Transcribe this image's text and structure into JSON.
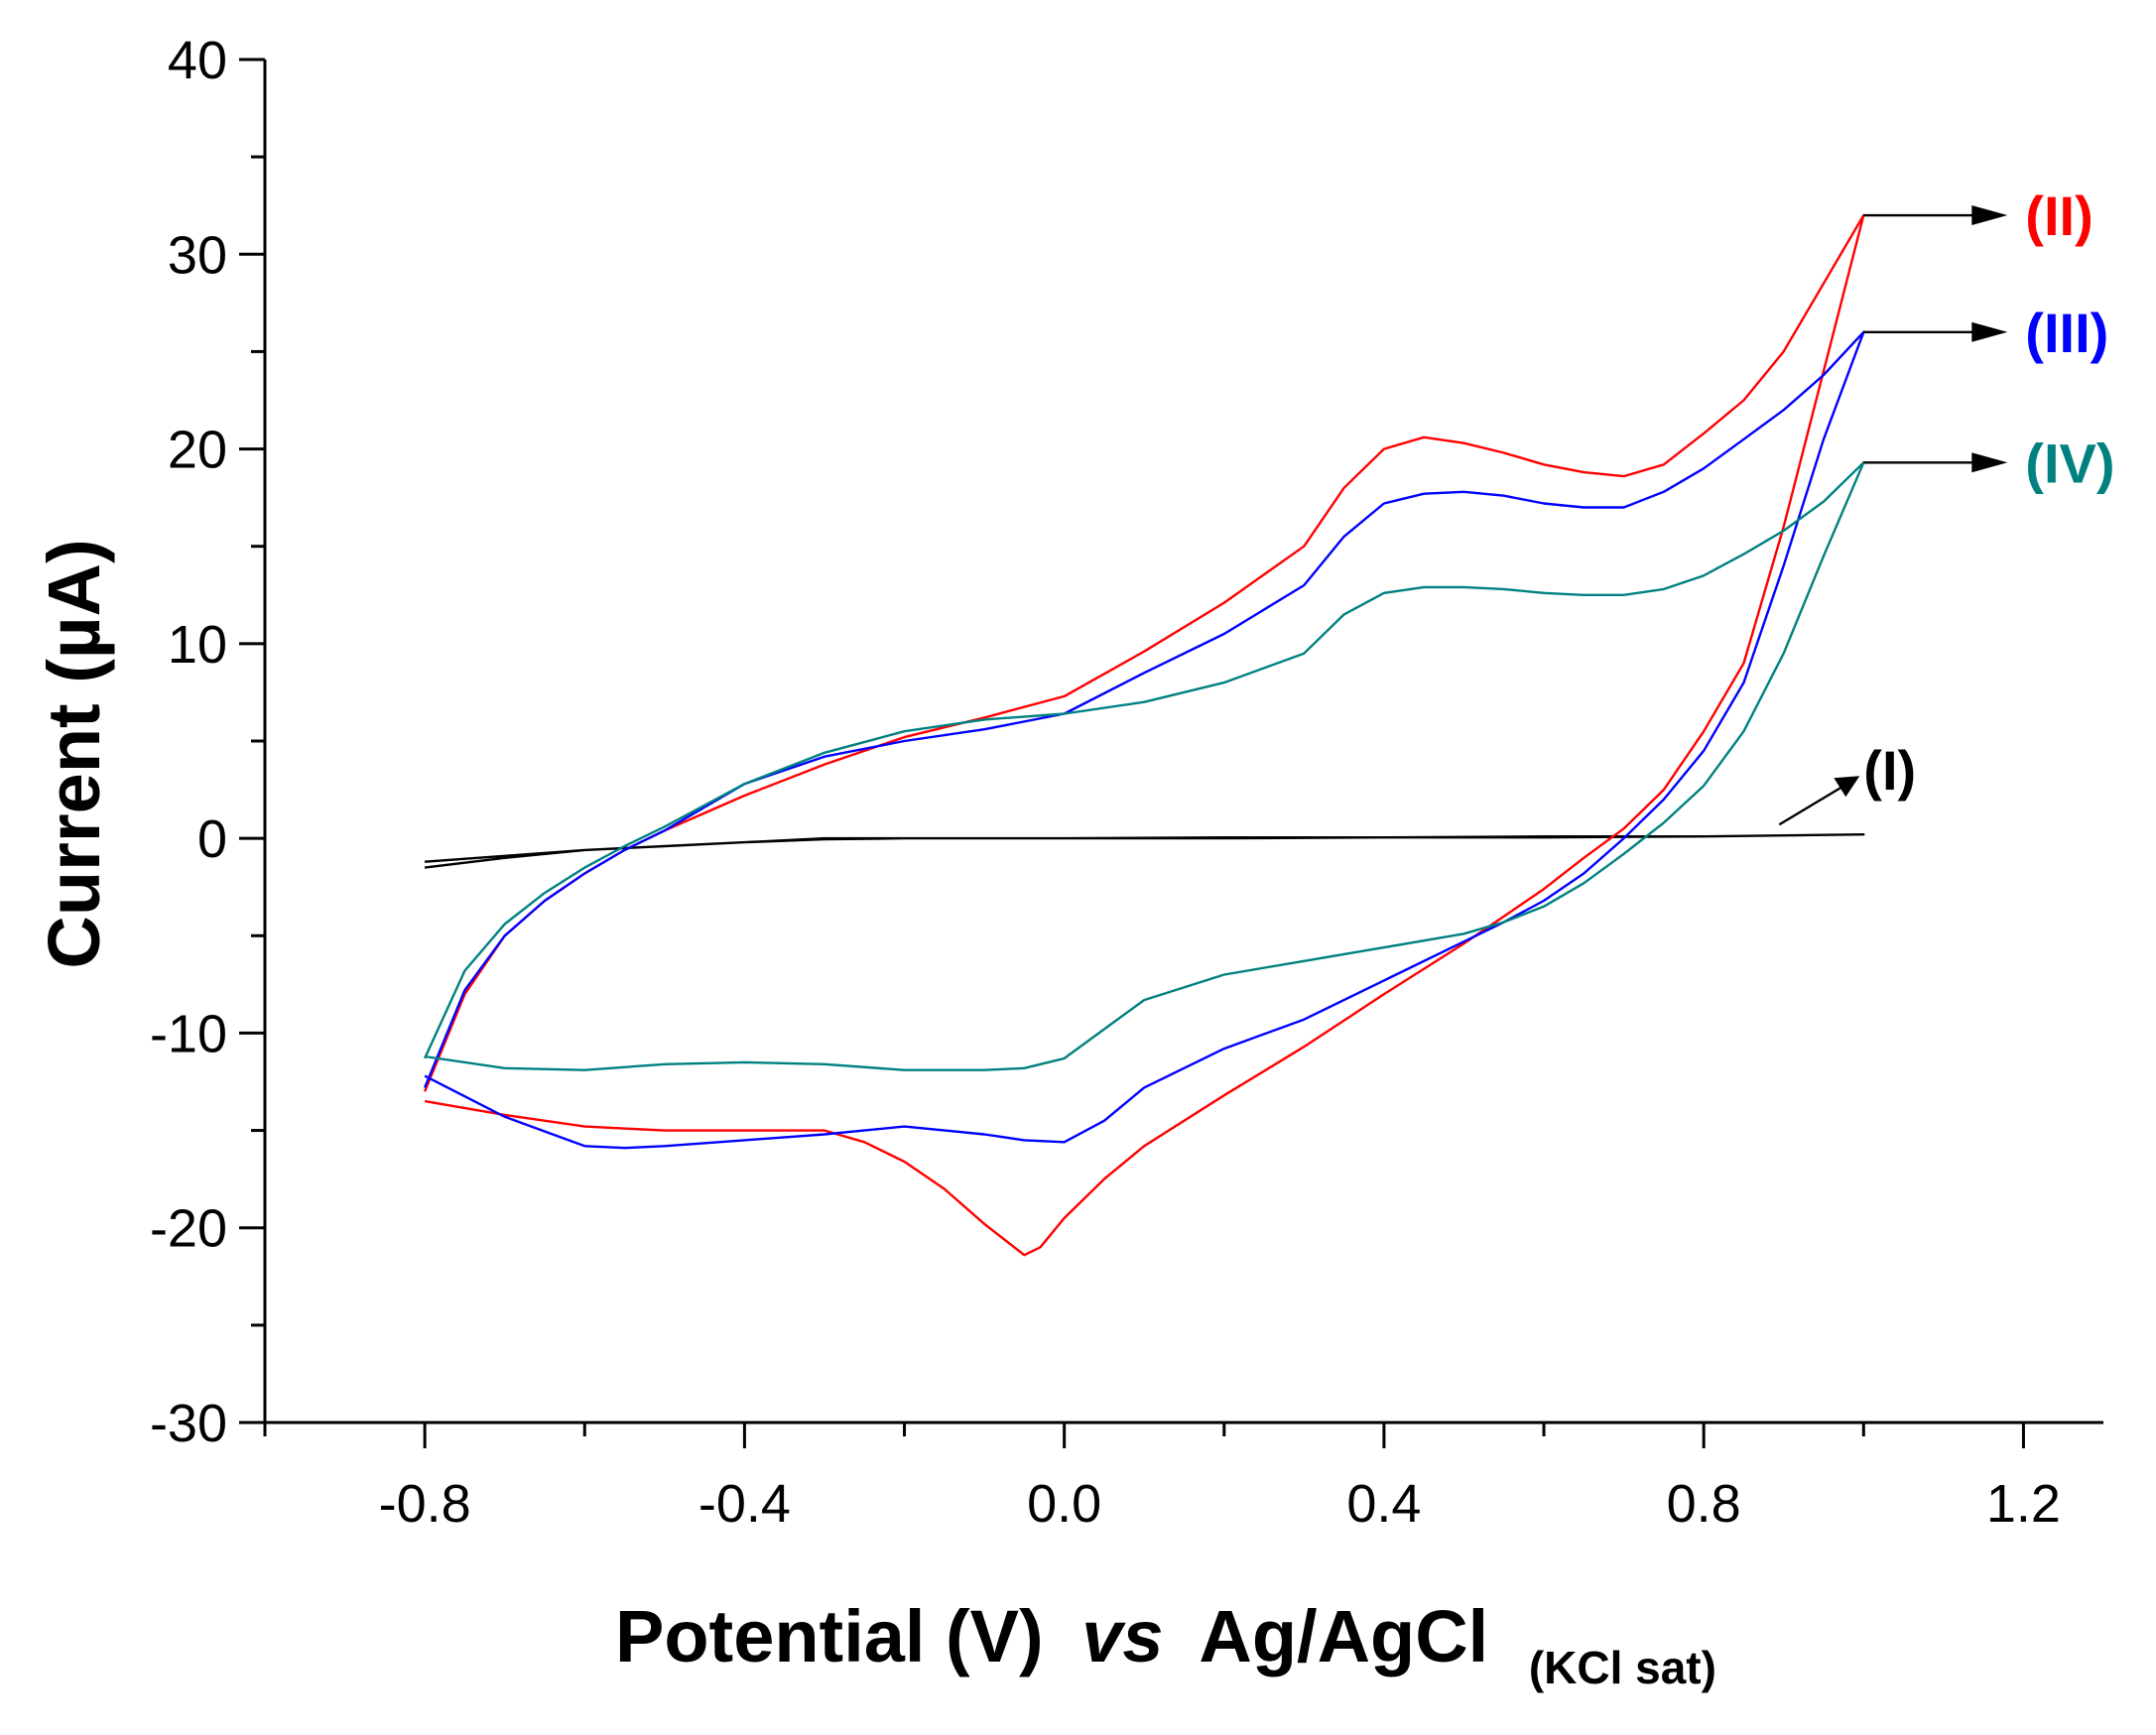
{
  "chart_data": {
    "type": "line",
    "title": "",
    "xlabel": {
      "main": "Potential (V)",
      "italic": "vs",
      "ref": "Ag/AgCl",
      "subscript": "(KCl sat)"
    },
    "ylabel": "Current (µA)",
    "xlim": [
      -1.0,
      1.3
    ],
    "ylim": [
      -30,
      40
    ],
    "x_ticks": [
      -0.8,
      -0.4,
      0.0,
      0.4,
      0.8,
      1.2
    ],
    "x_tick_labels": [
      "-0.8",
      "-0.4",
      "0.0",
      "0.4",
      "0.8",
      "1.2"
    ],
    "y_ticks": [
      -30,
      -20,
      -10,
      0,
      10,
      20,
      30,
      40
    ],
    "y_tick_labels": [
      "-30",
      "-20",
      "-10",
      "0",
      "10",
      "20",
      "30",
      "40"
    ],
    "grid": false,
    "series": [
      {
        "name": "(I)",
        "color": "#000000",
        "label_anchor": [
          1.0,
          0.2
        ],
        "label_style": "diagonal-arrow",
        "x": [
          -0.8,
          -0.7,
          -0.6,
          -0.5,
          -0.4,
          -0.3,
          -0.2,
          0.0,
          0.2,
          0.4,
          0.6,
          0.8,
          1.0,
          0.8,
          0.6,
          0.4,
          0.2,
          0.0,
          -0.2,
          -0.3,
          -0.4,
          -0.5,
          -0.6,
          -0.7,
          -0.8
        ],
        "y": [
          -1.2,
          -0.9,
          -0.6,
          -0.4,
          -0.2,
          0.0,
          0.0,
          0.0,
          0.05,
          0.05,
          0.1,
          0.1,
          0.2,
          0.1,
          0.05,
          0.05,
          0.0,
          0.0,
          0.0,
          -0.05,
          -0.2,
          -0.4,
          -0.6,
          -1.0,
          -1.5
        ]
      },
      {
        "name": "(II)",
        "color": "#ff0000",
        "label_anchor": [
          1.0,
          32
        ],
        "label_style": "arrow-right",
        "x": [
          -0.8,
          -0.75,
          -0.7,
          -0.65,
          -0.6,
          -0.55,
          -0.5,
          -0.45,
          -0.4,
          -0.3,
          -0.2,
          -0.1,
          0.0,
          0.1,
          0.2,
          0.3,
          0.35,
          0.4,
          0.45,
          0.5,
          0.55,
          0.6,
          0.65,
          0.7,
          0.75,
          0.8,
          0.85,
          0.9,
          0.95,
          1.0,
          0.95,
          0.9,
          0.85,
          0.8,
          0.75,
          0.7,
          0.65,
          0.6,
          0.55,
          0.5,
          0.4,
          0.3,
          0.2,
          0.1,
          0.05,
          0.0,
          -0.03,
          -0.05,
          -0.1,
          -0.15,
          -0.2,
          -0.25,
          -0.3,
          -0.4,
          -0.5,
          -0.6,
          -0.7,
          -0.8
        ],
        "y": [
          -13.0,
          -8.0,
          -5.0,
          -3.2,
          -1.8,
          -0.6,
          0.4,
          1.3,
          2.2,
          3.8,
          5.2,
          6.2,
          7.3,
          9.6,
          12.1,
          15.0,
          18.0,
          20.0,
          20.6,
          20.3,
          19.8,
          19.2,
          18.8,
          18.6,
          19.2,
          20.8,
          22.5,
          25.0,
          28.5,
          32.0,
          24.0,
          16.0,
          9.0,
          5.5,
          2.5,
          0.5,
          -1.0,
          -2.6,
          -4.0,
          -5.4,
          -8.0,
          -10.7,
          -13.2,
          -15.8,
          -17.5,
          -19.5,
          -21.0,
          -21.4,
          -19.8,
          -18.0,
          -16.6,
          -15.6,
          -15.0,
          -15.0,
          -15.0,
          -14.8,
          -14.2,
          -13.5
        ]
      },
      {
        "name": "(III)",
        "color": "#0000ff",
        "label_anchor": [
          1.0,
          26
        ],
        "label_style": "arrow-right",
        "x": [
          -0.8,
          -0.75,
          -0.7,
          -0.65,
          -0.6,
          -0.55,
          -0.5,
          -0.45,
          -0.4,
          -0.3,
          -0.2,
          -0.1,
          0.0,
          0.1,
          0.2,
          0.3,
          0.35,
          0.4,
          0.45,
          0.5,
          0.55,
          0.6,
          0.65,
          0.7,
          0.75,
          0.8,
          0.85,
          0.9,
          0.95,
          1.0,
          0.95,
          0.9,
          0.85,
          0.8,
          0.75,
          0.7,
          0.65,
          0.6,
          0.55,
          0.5,
          0.4,
          0.3,
          0.2,
          0.1,
          0.05,
          0.0,
          -0.05,
          -0.1,
          -0.2,
          -0.3,
          -0.4,
          -0.5,
          -0.55,
          -0.6,
          -0.7,
          -0.8
        ],
        "y": [
          -12.8,
          -7.8,
          -5.0,
          -3.2,
          -1.8,
          -0.6,
          0.4,
          1.6,
          2.8,
          4.2,
          5.0,
          5.6,
          6.4,
          8.5,
          10.5,
          13.0,
          15.5,
          17.2,
          17.7,
          17.8,
          17.6,
          17.2,
          17.0,
          17.0,
          17.8,
          19.0,
          20.5,
          22.0,
          23.8,
          26.0,
          20.5,
          14.0,
          8.0,
          4.5,
          2.0,
          0.0,
          -1.8,
          -3.2,
          -4.3,
          -5.3,
          -7.3,
          -9.3,
          -10.8,
          -12.8,
          -14.5,
          -15.6,
          -15.5,
          -15.2,
          -14.8,
          -15.2,
          -15.5,
          -15.8,
          -15.9,
          -15.8,
          -14.3,
          -12.2
        ]
      },
      {
        "name": "(IV)",
        "color": "#008080",
        "label_anchor": [
          1.0,
          19.3
        ],
        "label_style": "arrow-right",
        "x": [
          -0.8,
          -0.75,
          -0.7,
          -0.65,
          -0.6,
          -0.55,
          -0.5,
          -0.45,
          -0.4,
          -0.3,
          -0.2,
          -0.1,
          0.0,
          0.1,
          0.2,
          0.3,
          0.35,
          0.4,
          0.45,
          0.5,
          0.55,
          0.6,
          0.65,
          0.7,
          0.75,
          0.8,
          0.85,
          0.9,
          0.95,
          1.0,
          0.95,
          0.9,
          0.85,
          0.8,
          0.75,
          0.7,
          0.65,
          0.6,
          0.55,
          0.5,
          0.4,
          0.3,
          0.2,
          0.1,
          0.05,
          0.0,
          -0.05,
          -0.1,
          -0.2,
          -0.3,
          -0.4,
          -0.5,
          -0.6,
          -0.7,
          -0.8
        ],
        "y": [
          -11.3,
          -6.8,
          -4.4,
          -2.8,
          -1.5,
          -0.4,
          0.6,
          1.7,
          2.8,
          4.4,
          5.5,
          6.1,
          6.4,
          7.0,
          8.0,
          9.5,
          11.5,
          12.6,
          12.9,
          12.9,
          12.8,
          12.6,
          12.5,
          12.5,
          12.8,
          13.5,
          14.6,
          15.8,
          17.3,
          19.3,
          14.5,
          9.5,
          5.5,
          2.7,
          0.8,
          -0.8,
          -2.3,
          -3.5,
          -4.3,
          -4.9,
          -5.6,
          -6.3,
          -7.0,
          -8.3,
          -9.8,
          -11.3,
          -11.8,
          -11.9,
          -11.9,
          -11.6,
          -11.5,
          -11.6,
          -11.9,
          -11.8,
          -11.2
        ]
      }
    ]
  }
}
